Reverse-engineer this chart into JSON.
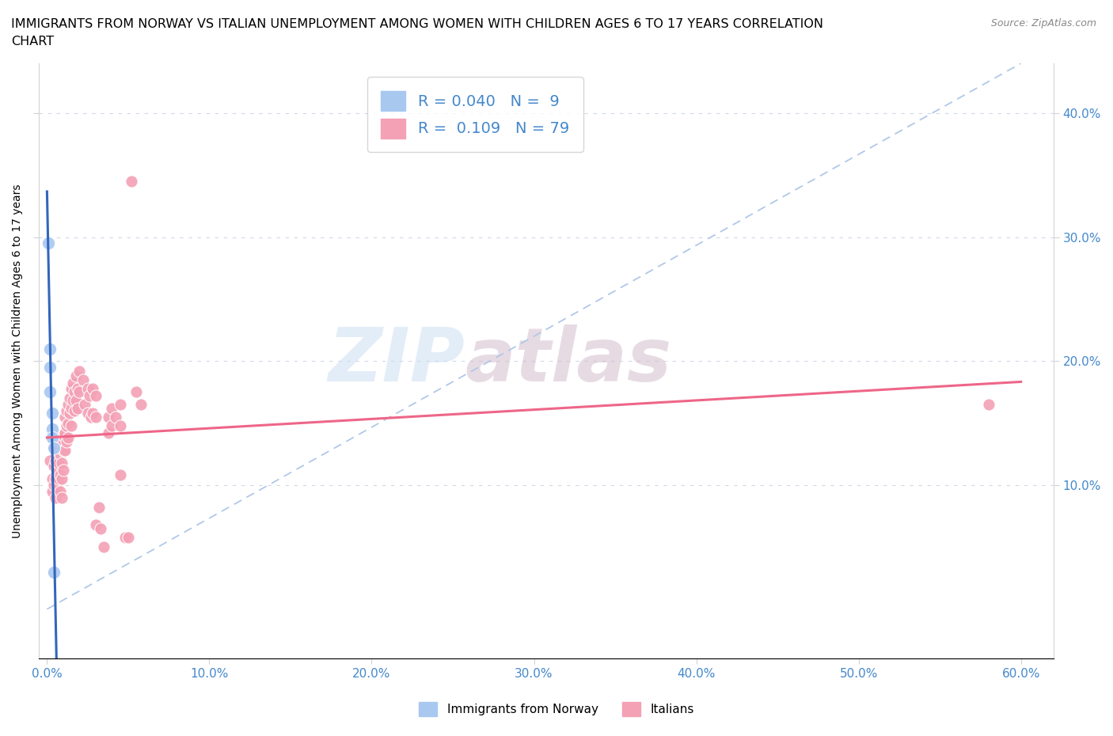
{
  "title_line1": "IMMIGRANTS FROM NORWAY VS ITALIAN UNEMPLOYMENT AMONG WOMEN WITH CHILDREN AGES 6 TO 17 YEARS CORRELATION",
  "title_line2": "CHART",
  "source": "Source: ZipAtlas.com",
  "ylabel": "Unemployment Among Women with Children Ages 6 to 17 years",
  "xlabel_ticks": [
    "0.0%",
    "10.0%",
    "20.0%",
    "30.0%",
    "40.0%",
    "50.0%",
    "60.0%"
  ],
  "xlabel_vals": [
    0.0,
    0.1,
    0.2,
    0.3,
    0.4,
    0.5,
    0.6
  ],
  "ylabel_ticks": [
    "10.0%",
    "20.0%",
    "30.0%",
    "40.0%"
  ],
  "ylabel_vals": [
    0.1,
    0.2,
    0.3,
    0.4
  ],
  "xlim": [
    -0.005,
    0.62
  ],
  "ylim": [
    -0.04,
    0.44
  ],
  "norway_color": "#a8c8f0",
  "italian_color": "#f4a0b5",
  "norway_trend_color": "#3366bb",
  "italian_trend_color": "#ee6688",
  "diag_color": "#b0c8e8",
  "watermark_color1": "#c8ddf0",
  "watermark_color2": "#d0b8c8",
  "norway_points": [
    [
      0.001,
      0.295
    ],
    [
      0.002,
      0.21
    ],
    [
      0.002,
      0.195
    ],
    [
      0.002,
      0.175
    ],
    [
      0.003,
      0.158
    ],
    [
      0.003,
      0.145
    ],
    [
      0.003,
      0.138
    ],
    [
      0.004,
      0.13
    ],
    [
      0.004,
      0.03
    ]
  ],
  "italian_points": [
    [
      0.002,
      0.12
    ],
    [
      0.003,
      0.105
    ],
    [
      0.003,
      0.095
    ],
    [
      0.004,
      0.13
    ],
    [
      0.004,
      0.115
    ],
    [
      0.004,
      0.1
    ],
    [
      0.005,
      0.12
    ],
    [
      0.005,
      0.105
    ],
    [
      0.005,
      0.09
    ],
    [
      0.006,
      0.128
    ],
    [
      0.006,
      0.112
    ],
    [
      0.006,
      0.098
    ],
    [
      0.007,
      0.135
    ],
    [
      0.007,
      0.118
    ],
    [
      0.007,
      0.105
    ],
    [
      0.008,
      0.14
    ],
    [
      0.008,
      0.125
    ],
    [
      0.008,
      0.108
    ],
    [
      0.008,
      0.095
    ],
    [
      0.009,
      0.135
    ],
    [
      0.009,
      0.118
    ],
    [
      0.009,
      0.105
    ],
    [
      0.009,
      0.09
    ],
    [
      0.01,
      0.14
    ],
    [
      0.01,
      0.128
    ],
    [
      0.01,
      0.112
    ],
    [
      0.011,
      0.155
    ],
    [
      0.011,
      0.142
    ],
    [
      0.011,
      0.128
    ],
    [
      0.012,
      0.16
    ],
    [
      0.012,
      0.148
    ],
    [
      0.012,
      0.135
    ],
    [
      0.013,
      0.165
    ],
    [
      0.013,
      0.15
    ],
    [
      0.013,
      0.138
    ],
    [
      0.014,
      0.17
    ],
    [
      0.014,
      0.158
    ],
    [
      0.015,
      0.178
    ],
    [
      0.015,
      0.162
    ],
    [
      0.015,
      0.148
    ],
    [
      0.016,
      0.182
    ],
    [
      0.016,
      0.168
    ],
    [
      0.017,
      0.175
    ],
    [
      0.017,
      0.16
    ],
    [
      0.018,
      0.188
    ],
    [
      0.018,
      0.168
    ],
    [
      0.019,
      0.178
    ],
    [
      0.019,
      0.162
    ],
    [
      0.02,
      0.192
    ],
    [
      0.02,
      0.175
    ],
    [
      0.022,
      0.185
    ],
    [
      0.023,
      0.165
    ],
    [
      0.025,
      0.178
    ],
    [
      0.025,
      0.158
    ],
    [
      0.026,
      0.172
    ],
    [
      0.027,
      0.155
    ],
    [
      0.028,
      0.178
    ],
    [
      0.028,
      0.158
    ],
    [
      0.03,
      0.172
    ],
    [
      0.03,
      0.155
    ],
    [
      0.03,
      0.068
    ],
    [
      0.032,
      0.082
    ],
    [
      0.033,
      0.065
    ],
    [
      0.035,
      0.05
    ],
    [
      0.038,
      0.155
    ],
    [
      0.038,
      0.142
    ],
    [
      0.04,
      0.162
    ],
    [
      0.04,
      0.148
    ],
    [
      0.042,
      0.155
    ],
    [
      0.045,
      0.165
    ],
    [
      0.045,
      0.148
    ],
    [
      0.045,
      0.108
    ],
    [
      0.048,
      0.058
    ],
    [
      0.05,
      0.058
    ],
    [
      0.052,
      0.345
    ],
    [
      0.055,
      0.175
    ],
    [
      0.058,
      0.165
    ],
    [
      0.58,
      0.165
    ]
  ]
}
